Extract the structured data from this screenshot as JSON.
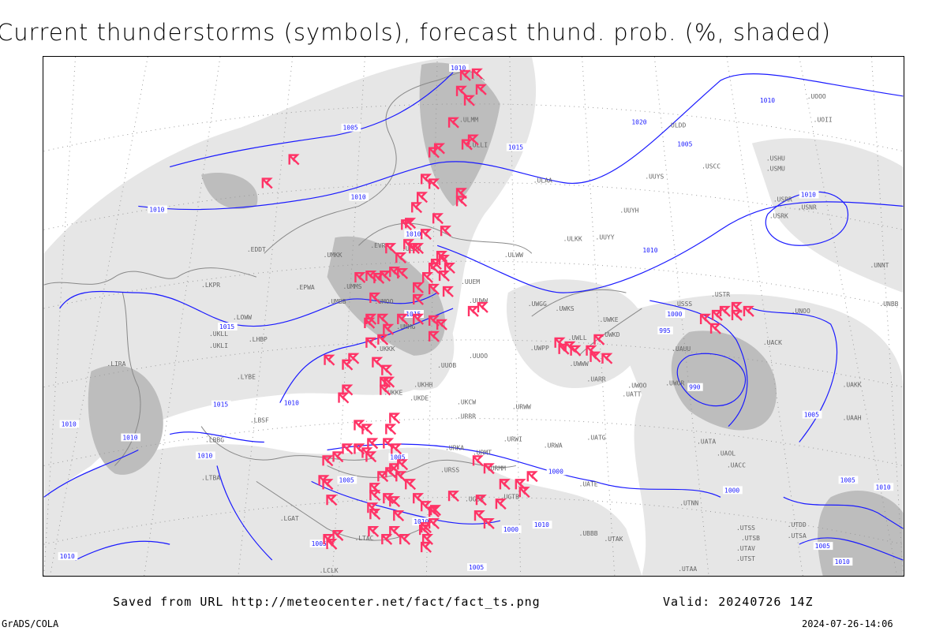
{
  "title": "Current thunderstorms (symbols), forecast thund. prob. (%, shaded)",
  "footer": {
    "source": "Saved from URL http://meteocenter.net/fact/fact_ts.png",
    "valid": "Valid: 20240726 14Z",
    "software": "GrADS/COLA",
    "timestamp": "2024-07-26-14:06"
  },
  "colors": {
    "isobar": "#1a1aff",
    "thunderstorm_symbol": "#ff3366",
    "shading_light": "#e6e6e6",
    "shading_dark": "#bdbdbd",
    "coastline": "#888888"
  },
  "symbol_icon": "thunderstorm-icon",
  "isobar_labels": [
    "1010",
    "1005",
    "1010",
    "1015",
    "1020",
    "1010",
    "1010",
    "1015",
    "1005",
    "1010",
    "1010",
    "1015",
    "1010",
    "1010",
    "1010",
    "1005",
    "1000",
    "995",
    "990",
    "1000",
    "1005",
    "1000",
    "1005",
    "1010",
    "1010",
    "1005",
    "1010",
    "1005",
    "1010",
    "1000",
    "1005",
    "1010",
    "1005",
    "1010",
    "1015",
    "1010"
  ],
  "stations": [
    "ULMM",
    "ULLI",
    "ULAA",
    "ULDD",
    "UUYS",
    "USCC",
    "USHU",
    "UUYH",
    "ULKK",
    "UUYY",
    "ULWW",
    "EVRA",
    "ULOO",
    "UMKK",
    "EDDT",
    "EPWA",
    "UMMS",
    "UMBB",
    "UMMG",
    "UMOO",
    "UUEM",
    "UUWW",
    "UWGG",
    "UWKS",
    "UWKE",
    "UWKD",
    "UWLL",
    "UWPP",
    "UWWW",
    "UUOO",
    "UUOB",
    "UKKK",
    "UKKE",
    "UKHH",
    "UKDE",
    "UKCW",
    "URRR",
    "URWW",
    "URWI",
    "URWA",
    "UATG",
    "UATA",
    "UAOL",
    "UACC",
    "URMT",
    "URMM",
    "URKA",
    "URSS",
    "UGSS",
    "UGTB",
    "UBBB",
    "UTAK",
    "UTAA",
    "UTNN",
    "UATE",
    "UATT",
    "UWOO",
    "UWOR",
    "UAUU",
    "UACK",
    "UARR",
    "UAKK",
    "UAAH",
    "USSS",
    "USTR",
    "UNOO",
    "UNNT",
    "UNBB",
    "USRR",
    "USRK",
    "USNR",
    "USMU",
    "UOOO",
    "UOII",
    "LKPR",
    "LOWW",
    "LHBP",
    "LIRA",
    "LYBE",
    "LBSF",
    "LBBG",
    "LTBA",
    "LCLK",
    "UKLL",
    "UKLI",
    "LGAT",
    "LTAC",
    "UTSS",
    "UTSB",
    "UTAV",
    "UTST",
    "UTDD",
    "UTSA"
  ]
}
